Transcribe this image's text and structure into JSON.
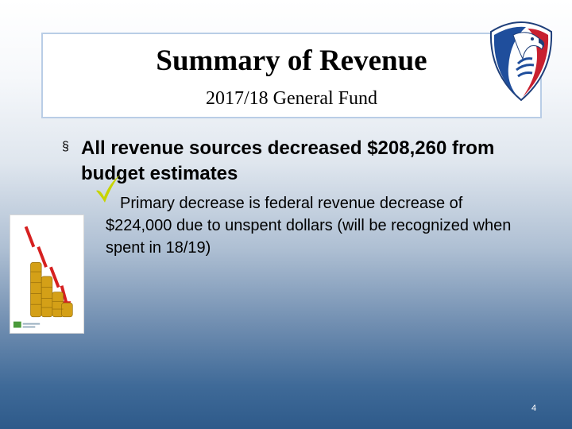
{
  "slide": {
    "title": "Summary of Revenue",
    "subtitle": "2017/18 General Fund",
    "bullets": [
      {
        "text": "All revenue sources decreased $208,260 from budget estimates",
        "marker": "§",
        "sub_bullets": [
          {
            "marker_icon": "checkmark-icon",
            "text_line1": "Primary decrease is federal revenue decrease of",
            "text_rest": "$224,000 due to unspent dollars (will be recognized when spent in 18/19)"
          }
        ]
      }
    ],
    "page_number": "4",
    "logo_icon": "eagle-shield-logo",
    "thumbnail_icon": "declining-coins-chart-icon"
  },
  "colors": {
    "title_border": "#b9cde6",
    "check": "#c7d400",
    "background_bottom": "#2e5a8a",
    "arrow_red": "#d62020",
    "coin_gold": "#d4a017"
  }
}
